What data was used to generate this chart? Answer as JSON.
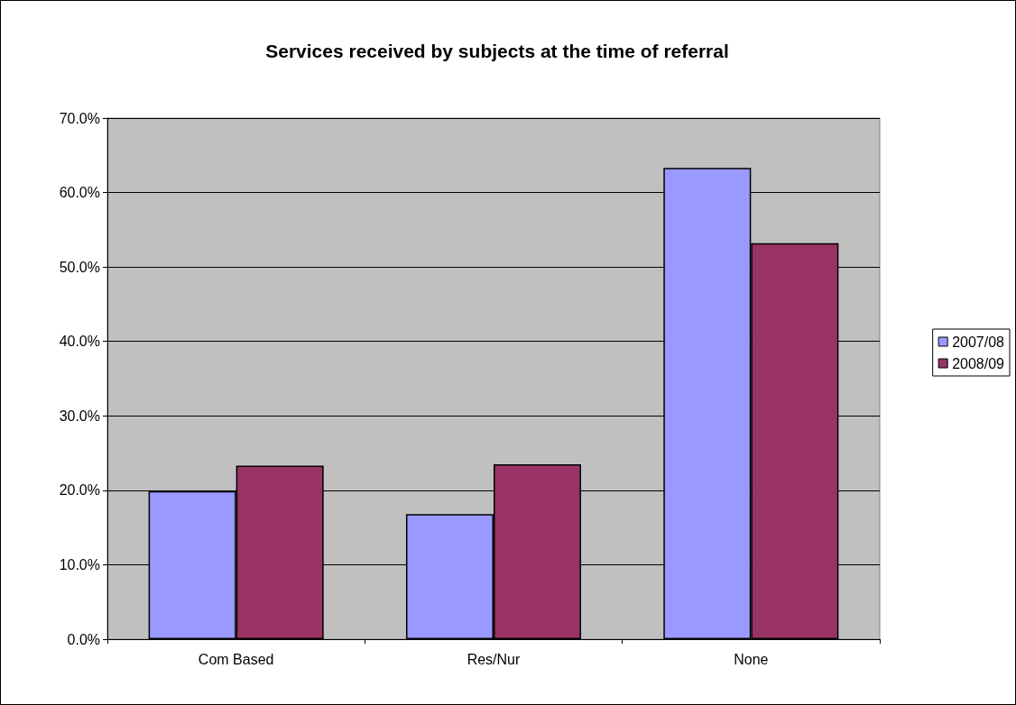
{
  "chart_data": {
    "type": "bar",
    "title": "Services received by subjects at the time of referral",
    "categories": [
      "Com Based",
      "Res/Nur",
      "None"
    ],
    "series": [
      {
        "name": "2007/08",
        "color": "#9999ff",
        "values": [
          19.9,
          16.8,
          63.3
        ]
      },
      {
        "name": "2008/09",
        "color": "#993366",
        "values": [
          23.3,
          23.5,
          53.2
        ]
      }
    ],
    "ylim": [
      0,
      70
    ],
    "yticks": [
      {
        "value": 0,
        "label": "0.0%"
      },
      {
        "value": 10,
        "label": "10.0%"
      },
      {
        "value": 20,
        "label": "20.0%"
      },
      {
        "value": 30,
        "label": "30.0%"
      },
      {
        "value": 40,
        "label": "40.0%"
      },
      {
        "value": 50,
        "label": "50.0%"
      },
      {
        "value": 60,
        "label": "60.0%"
      },
      {
        "value": 70,
        "label": "70.0%"
      }
    ],
    "grid": "y",
    "legend": "right"
  }
}
